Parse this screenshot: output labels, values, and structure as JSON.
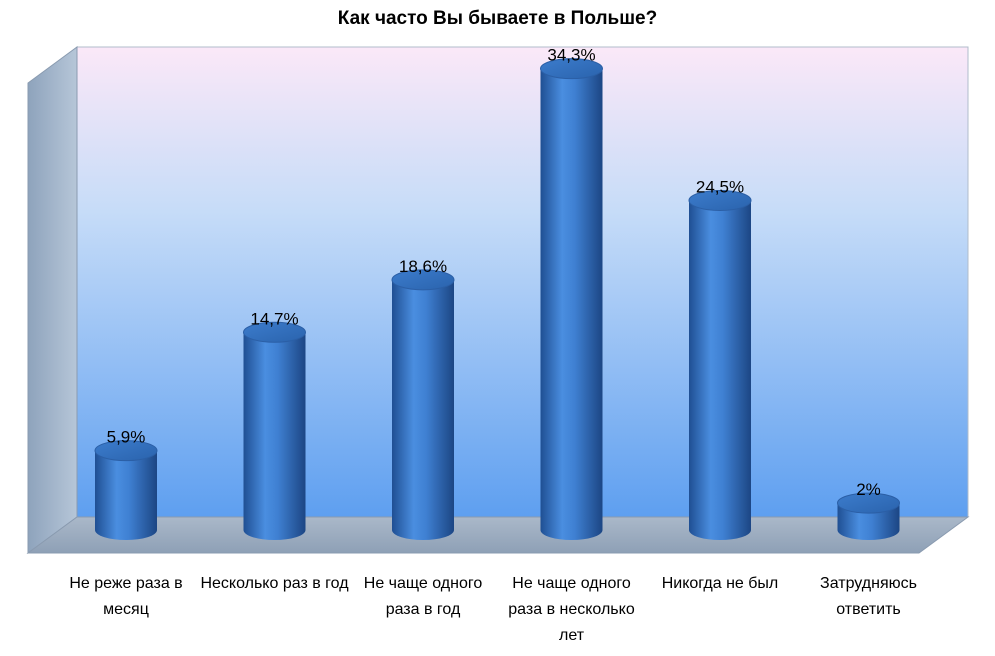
{
  "chart_data": {
    "type": "bar",
    "title": "Как часто Вы бываете в Польше?",
    "categories": [
      "Не реже раза в месяц",
      "Несколько раз в год",
      "Не чаще одного раза в год",
      "Не чаще одного раза в несколько лет",
      "Никогда не был",
      "Затрудняюсь ответить"
    ],
    "values": [
      5.9,
      14.7,
      18.6,
      34.3,
      24.5,
      2
    ],
    "value_labels": [
      "5,9%",
      "14,7%",
      "18,6%",
      "34,3%",
      "24,5%",
      "2%"
    ],
    "xlabel": "",
    "ylabel": "",
    "ylim": [
      0,
      36
    ],
    "grid": false,
    "legend": "none",
    "bar_color": "#3a78c8",
    "background_top": "#fbe8f8",
    "background_bottom": "#5ea2f2"
  }
}
